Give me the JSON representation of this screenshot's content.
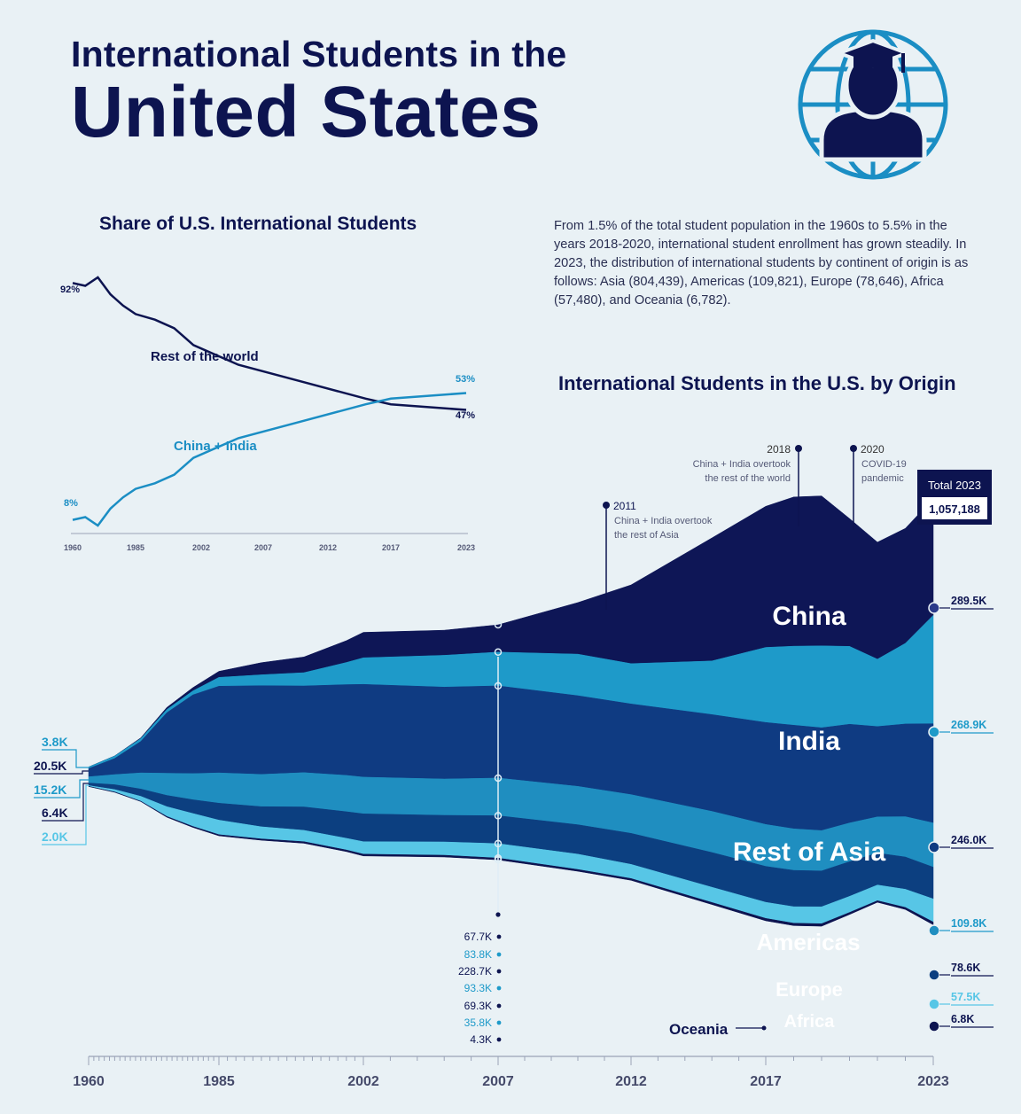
{
  "header": {
    "title_line1": "International Students in the",
    "title_line2": "United States"
  },
  "intro_text": "From 1.5% of the total student population in the 1960s to 5.5% in the years 2018-2020, international student enrollment has grown steadily. In 2023, the distribution of international students by continent of origin is as follows: Asia (804,439), Americas (109,821), Europe (78,646), Africa (57,480), and Oceania (6,782).",
  "icons": {
    "header": "graduate-globe-icon"
  },
  "colors": {
    "navy": "#0d1450",
    "china": "#0e1656",
    "india": "#1e9ac9",
    "rest_of_asia": "#0f3b82",
    "americas": "#1f8ec0",
    "europe": "#0c3f80",
    "africa": "#57c6e6",
    "oceania": "#0d1450",
    "teal_line": "#1b8ec4",
    "background": "#e9f1f5"
  },
  "chart_data": [
    {
      "type": "line",
      "title": "Share of U.S. International Students",
      "x_ticks": [
        "1960",
        "1985",
        "2002",
        "2007",
        "2012",
        "2017",
        "2023"
      ],
      "series": [
        {
          "name": "Rest of the world",
          "color": "#0d1450",
          "x": [
            1960,
            1965,
            1970,
            1975,
            1980,
            1985,
            1990,
            1995,
            2000,
            2005,
            2010,
            2015,
            2017,
            2020,
            2023
          ],
          "y": [
            92,
            91,
            94,
            88,
            84,
            81,
            79,
            76,
            70,
            63,
            57,
            51,
            49,
            48,
            47
          ]
        },
        {
          "name": "China + India",
          "color": "#1b8ec4",
          "x": [
            1960,
            1965,
            1970,
            1975,
            1980,
            1985,
            1990,
            1995,
            2000,
            2005,
            2010,
            2015,
            2017,
            2020,
            2023
          ],
          "y": [
            8,
            9,
            6,
            12,
            16,
            19,
            21,
            24,
            30,
            37,
            43,
            49,
            51,
            52,
            53
          ]
        }
      ],
      "start_labels": [
        "92%",
        "8%"
      ],
      "end_labels": [
        "53%",
        "47%"
      ],
      "series_labels": [
        "Rest of the world",
        "China + India"
      ],
      "ylim": [
        0,
        100
      ]
    },
    {
      "type": "area",
      "title": "International Students in the U.S. by Origin",
      "x_ticks": [
        "1960",
        "1985",
        "2002",
        "2007",
        "2012",
        "2017",
        "2023"
      ],
      "x": [
        1960,
        1965,
        1970,
        1975,
        1980,
        1985,
        1990,
        1995,
        2000,
        2002,
        2005,
        2007,
        2010,
        2012,
        2015,
        2017,
        2018,
        2019,
        2020,
        2021,
        2022,
        2023
      ],
      "series": [
        {
          "name": "China",
          "color": "#0e1656",
          "end_value_label": "289.5K",
          "values": [
            0.1,
            0.5,
            2,
            5,
            8,
            15,
            30,
            39,
            54,
            63,
            62,
            67.7,
            128,
            195,
            305,
            350,
            370,
            372,
            317,
            290,
            285,
            289.5
          ]
        },
        {
          "name": "India",
          "color": "#1e9ac9",
          "end_value_label": "268.9K",
          "values": [
            3.8,
            6,
            7,
            8,
            10,
            22,
            27,
            33,
            55,
            66,
            79,
            83.8,
            103,
            100,
            133,
            186,
            196,
            203,
            193,
            167,
            200,
            268.9
          ]
        },
        {
          "name": "Rest of Asia",
          "color": "#0f3b82",
          "end_value_label": "246.0K",
          "values": [
            20.5,
            40,
            78,
            150,
            195,
            215,
            220,
            215,
            225,
            230,
            228,
            228.7,
            225,
            225,
            240,
            253,
            257,
            255,
            245,
            224,
            230,
            246
          ]
        },
        {
          "name": "Americas",
          "color": "#1f8ec0",
          "end_value_label": "109.8K",
          "values": [
            15.2,
            25,
            40,
            55,
            65,
            75,
            80,
            85,
            90,
            91,
            90,
            93.3,
            95,
            96,
            102,
            104,
            103,
            100,
            96,
            90,
            100,
            109.8
          ]
        },
        {
          "name": "Europe",
          "color": "#0c3f80",
          "end_value_label": "78.6K",
          "values": [
            6.4,
            12,
            18,
            28,
            34,
            42,
            50,
            58,
            66,
            69,
            66,
            69.3,
            73,
            77,
            86,
            89,
            90,
            89,
            86,
            79,
            80,
            78.6
          ]
        },
        {
          "name": "Africa",
          "color": "#57c6e6",
          "end_value_label": "57.5K",
          "values": [
            2.0,
            6,
            12,
            24,
            32,
            36,
            30,
            28,
            29,
            31,
            33,
            35.8,
            38,
            35,
            38,
            40,
            41,
            42,
            40,
            39,
            45,
            57.5
          ]
        },
        {
          "name": "Oceania",
          "color": "#0d1450",
          "end_value_label": "6.8K",
          "values": [
            0.5,
            0.8,
            1,
            2,
            2.5,
            3,
            3.5,
            4,
            4,
            4.3,
            4.3,
            4.3,
            4.5,
            4.5,
            5,
            6,
            6,
            6,
            5,
            4,
            5,
            6.8
          ]
        }
      ],
      "start_labels": [
        "3.8K",
        "20.5K",
        "15.2K",
        "6.4K",
        "2.0K"
      ],
      "year_2007_labels": [
        "67.7K",
        "83.8K",
        "228.7K",
        "93.3K",
        "69.3K",
        "35.8K",
        "4.3K"
      ],
      "annotations": [
        {
          "year": "2011",
          "text": [
            "China + India overtook",
            "the rest of Asia"
          ]
        },
        {
          "year": "2018",
          "text": [
            "China + India overtook",
            "the rest of the world"
          ]
        },
        {
          "year": "2020",
          "text": [
            "COVID-19",
            "pandemic"
          ]
        }
      ],
      "total_label": "Total 2023",
      "total_value": "1,057,188"
    }
  ]
}
